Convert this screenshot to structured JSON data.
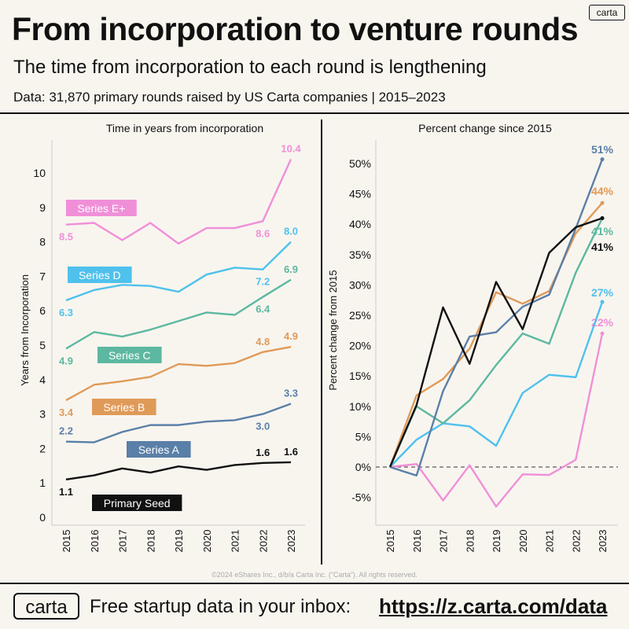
{
  "header": {
    "title": "From incorporation to venture rounds",
    "subtitle": "The time from incorporation to each round is lengthening",
    "data_note": "Data: 31,870 primary rounds raised by US Carta companies | 2015–2023",
    "logo_small": "carta"
  },
  "footer": {
    "copyright": "©2024 eShares Inc., d/b/a Carta Inc. (“Carta”). All rights reserved.",
    "logo": "carta",
    "text": "Free startup data in your inbox:",
    "url": "https://z.carta.com/data"
  },
  "chart_data": [
    {
      "type": "line",
      "title": "Time in years from incorporation",
      "xlabel": "",
      "ylabel": "Years from Incorporation",
      "x": [
        "2015",
        "2016",
        "2017",
        "2018",
        "2019",
        "2020",
        "2021",
        "2022",
        "2023"
      ],
      "ylim": [
        0,
        11
      ],
      "yticks": [
        "0",
        "1",
        "2",
        "3",
        "4",
        "5",
        "6",
        "7",
        "8",
        "9",
        "10"
      ],
      "series": [
        {
          "name": "Series E+",
          "color": "#f08fd8",
          "values": [
            8.5,
            8.55,
            8.05,
            8.55,
            7.95,
            8.4,
            8.4,
            8.6,
            10.4
          ],
          "labels": [
            {
              "i": 0,
              "text": "8.5",
              "pos": "below"
            },
            {
              "i": 7,
              "text": "8.6",
              "pos": "below"
            },
            {
              "i": 8,
              "text": "10.4",
              "pos": "above"
            }
          ]
        },
        {
          "name": "Series D",
          "color": "#4fc1ec",
          "values": [
            6.3,
            6.6,
            6.75,
            6.72,
            6.55,
            7.05,
            7.25,
            7.2,
            8.0
          ],
          "labels": [
            {
              "i": 0,
              "text": "6.3",
              "pos": "below"
            },
            {
              "i": 7,
              "text": "7.2",
              "pos": "below"
            },
            {
              "i": 8,
              "text": "8.0",
              "pos": "above"
            }
          ]
        },
        {
          "name": "Series C",
          "color": "#5cb8a0",
          "values": [
            4.9,
            5.38,
            5.25,
            5.45,
            5.7,
            5.95,
            5.88,
            6.4,
            6.9
          ],
          "labels": [
            {
              "i": 0,
              "text": "4.9",
              "pos": "below"
            },
            {
              "i": 7,
              "text": "6.4",
              "pos": "below"
            },
            {
              "i": 8,
              "text": "6.9",
              "pos": "above"
            }
          ]
        },
        {
          "name": "Series B",
          "color": "#e09a58",
          "values": [
            3.4,
            3.85,
            3.95,
            4.08,
            4.45,
            4.4,
            4.48,
            4.8,
            4.95
          ],
          "labels": [
            {
              "i": 0,
              "text": "3.4",
              "pos": "below"
            },
            {
              "i": 7,
              "text": "4.8",
              "pos": "above"
            },
            {
              "i": 8,
              "text": "4.9",
              "pos": "above"
            }
          ]
        },
        {
          "name": "Series A",
          "color": "#5a7fa8",
          "values": [
            2.2,
            2.18,
            2.48,
            2.68,
            2.68,
            2.78,
            2.82,
            3.0,
            3.3
          ],
          "labels": [
            {
              "i": 0,
              "text": "2.2",
              "pos": "above"
            },
            {
              "i": 7,
              "text": "3.0",
              "pos": "below"
            },
            {
              "i": 8,
              "text": "3.3",
              "pos": "above"
            }
          ]
        },
        {
          "name": "Primary Seed",
          "color": "#111111",
          "values": [
            1.1,
            1.22,
            1.42,
            1.3,
            1.48,
            1.38,
            1.52,
            1.58,
            1.6
          ],
          "labels": [
            {
              "i": 0,
              "text": "1.1",
              "pos": "below"
            },
            {
              "i": 7,
              "text": "1.6",
              "pos": "above"
            },
            {
              "i": 8,
              "text": "1.6",
              "pos": "above"
            }
          ]
        }
      ]
    },
    {
      "type": "line",
      "title": "Percent change since 2015",
      "xlabel": "",
      "ylabel": "Percent change from 2015",
      "x": [
        "2015",
        "2016",
        "2017",
        "2018",
        "2019",
        "2020",
        "2021",
        "2022",
        "2023"
      ],
      "ylim": [
        -8,
        53
      ],
      "yticks": [
        "-5%",
        "0%",
        "5%",
        "10%",
        "15%",
        "20%",
        "25%",
        "30%",
        "35%",
        "40%",
        "45%",
        "50%"
      ],
      "reference_line": 0,
      "series": [
        {
          "name": "Series E+",
          "color": "#f08fd8",
          "values": [
            0,
            0.5,
            -5.5,
            0.3,
            -6.5,
            -1.2,
            -1.3,
            1.2,
            22
          ],
          "end_label": "22%"
        },
        {
          "name": "Series D",
          "color": "#4fc1ec",
          "values": [
            0,
            4.5,
            7.2,
            6.7,
            3.5,
            12.2,
            15.2,
            14.8,
            27.2
          ],
          "end_label": "27%"
        },
        {
          "name": "Series C",
          "color": "#5cb8a0",
          "values": [
            0,
            10,
            7.2,
            11,
            16.8,
            22,
            20.3,
            32,
            41
          ],
          "end_label": "41%"
        },
        {
          "name": "Series B",
          "color": "#e09a58",
          "values": [
            0,
            11.8,
            14.5,
            19.5,
            28.8,
            26.9,
            29,
            38.5,
            43.5
          ],
          "end_label": "44%"
        },
        {
          "name": "Series A",
          "color": "#5a7fa8",
          "values": [
            0,
            -1.4,
            12.5,
            21.5,
            22.2,
            26.4,
            28.4,
            39.3,
            50.7
          ],
          "end_label": "51%"
        },
        {
          "name": "Primary Seed",
          "color": "#111111",
          "values": [
            0,
            10.2,
            26.3,
            17,
            30.5,
            22.7,
            35.3,
            39.5,
            41
          ],
          "end_label": "41%"
        }
      ]
    }
  ]
}
